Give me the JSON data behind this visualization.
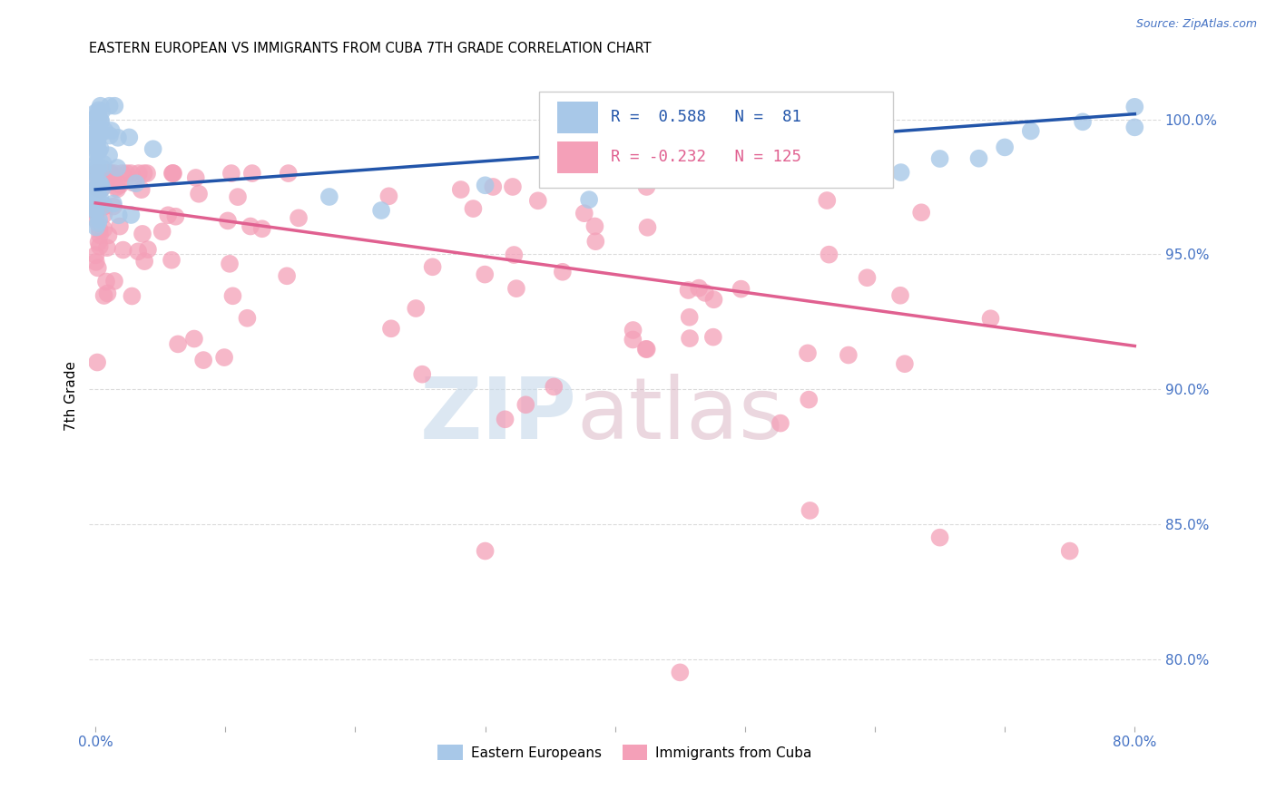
{
  "title": "EASTERN EUROPEAN VS IMMIGRANTS FROM CUBA 7TH GRADE CORRELATION CHART",
  "source": "Source: ZipAtlas.com",
  "ylabel": "7th Grade",
  "ytick_labels": [
    "80.0%",
    "85.0%",
    "90.0%",
    "95.0%",
    "100.0%"
  ],
  "ytick_values": [
    0.8,
    0.85,
    0.9,
    0.95,
    1.0
  ],
  "xlim": [
    -0.005,
    0.82
  ],
  "ylim": [
    0.775,
    1.02
  ],
  "legend_bottom_blue": "Eastern Europeans",
  "legend_bottom_pink": "Immigrants from Cuba",
  "blue_color": "#a8c8e8",
  "pink_color": "#f4a0b8",
  "blue_line_color": "#2255aa",
  "pink_line_color": "#e06090",
  "blue_line_x": [
    0.0,
    0.8
  ],
  "blue_line_y": [
    0.974,
    1.002
  ],
  "pink_line_x": [
    0.0,
    0.8
  ],
  "pink_line_y": [
    0.969,
    0.916
  ],
  "watermark_zip_color": "#c5d8ea",
  "watermark_atlas_color": "#d8b0c0",
  "grid_color": "#d8d8d8",
  "tick_color": "#4472c4",
  "title_fontsize": 10.5,
  "axis_fontsize": 11
}
